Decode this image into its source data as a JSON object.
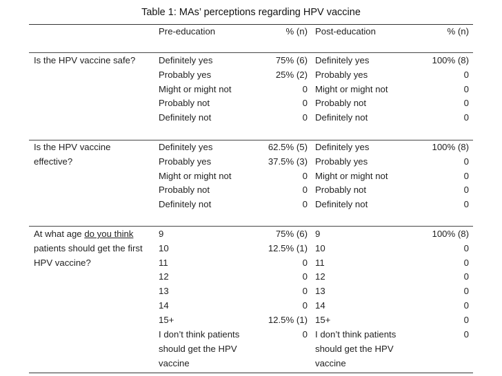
{
  "title": "Table 1: MAs’ perceptions regarding HPV vaccine",
  "header": {
    "pre": "Pre-education",
    "pct_pre": "% (n)",
    "post": "Post-education",
    "pct_post": "% (n)"
  },
  "sections": [
    {
      "question": "Is the HPV vaccine safe?",
      "rows": [
        {
          "pre": "Definitely yes",
          "pre_pct": "75% (6)",
          "post": "Definitely yes",
          "post_pct": "100% (8)"
        },
        {
          "pre": "Probably yes",
          "pre_pct": "25% (2)",
          "post": "Probably yes",
          "post_pct": "0"
        },
        {
          "pre": "Might or might not",
          "pre_pct": "0",
          "post": "Might or might not",
          "post_pct": "0"
        },
        {
          "pre": "Probably not",
          "pre_pct": "0",
          "post": "Probably not",
          "post_pct": "0"
        },
        {
          "pre": "Definitely not",
          "pre_pct": "0",
          "post": "Definitely not",
          "post_pct": "0"
        }
      ]
    },
    {
      "question_line1": "Is the HPV vaccine",
      "question_line2": "effective?",
      "rows": [
        {
          "pre": "Definitely yes",
          "pre_pct": "62.5% (5)",
          "post": "Definitely yes",
          "post_pct": "100% (8)"
        },
        {
          "pre": "Probably yes",
          "pre_pct": "37.5% (3)",
          "post": "Probably yes",
          "post_pct": "0"
        },
        {
          "pre": "Might or might not",
          "pre_pct": "0",
          "post": "Might or might not",
          "post_pct": "0"
        },
        {
          "pre": "Probably not",
          "pre_pct": "0",
          "post": "Probably not",
          "post_pct": "0"
        },
        {
          "pre": "Definitely not",
          "pre_pct": "0",
          "post": "Definitely not",
          "post_pct": "0"
        }
      ]
    },
    {
      "question_pre": "At what age ",
      "question_em": "do you think",
      "question_line2": "patients should get the first",
      "question_line3": "HPV vaccine?",
      "rows": [
        {
          "pre": "9",
          "pre_pct": "75% (6)",
          "post": "9",
          "post_pct": "100% (8)"
        },
        {
          "pre": "10",
          "pre_pct": "12.5% (1)",
          "post": "10",
          "post_pct": "0"
        },
        {
          "pre": "11",
          "pre_pct": "0",
          "post": "11",
          "post_pct": "0"
        },
        {
          "pre": "12",
          "pre_pct": "0",
          "post": "12",
          "post_pct": "0"
        },
        {
          "pre": "13",
          "pre_pct": "0",
          "post": "13",
          "post_pct": "0"
        },
        {
          "pre": "14",
          "pre_pct": "0",
          "post": "14",
          "post_pct": "0"
        },
        {
          "pre": "15+",
          "pre_pct": "12.5% (1)",
          "post": "15+",
          "post_pct": "0"
        }
      ],
      "last_pre_line1": "I don’t think patients",
      "last_pre_line2": "should get the HPV",
      "last_pre_line3": "vaccine",
      "last_pre_pct": "0",
      "last_post_line1": "I don’t think patients",
      "last_post_line2": "should get the HPV",
      "last_post_line3": "vaccine",
      "last_post_pct": "0"
    }
  ]
}
